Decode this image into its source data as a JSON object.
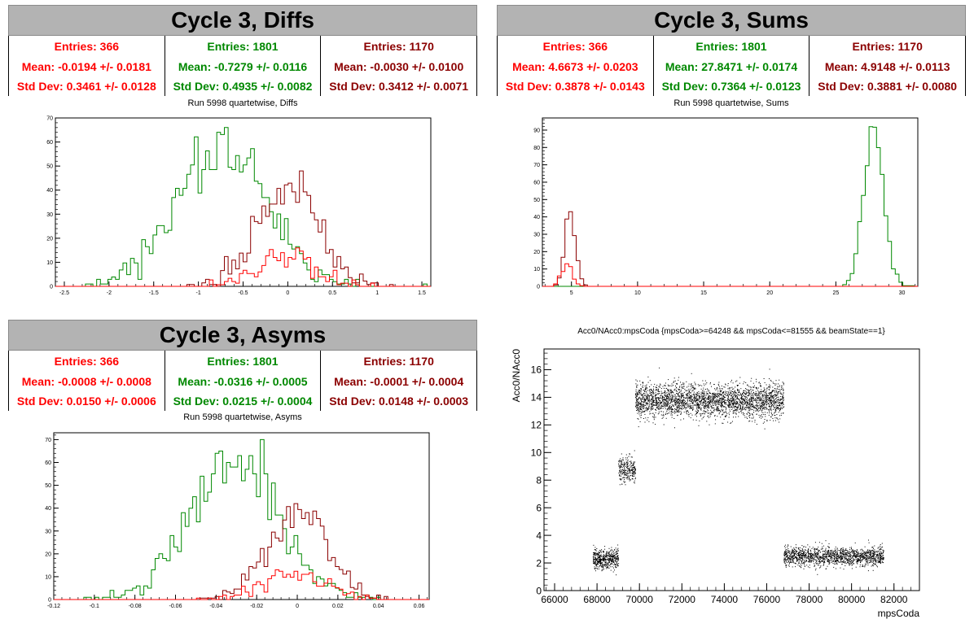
{
  "panels": {
    "diffs": {
      "title": "Cycle 3, Diffs",
      "subtitle": "Run 5998 quartetwise, Diffs",
      "stats": [
        {
          "entries": "Entries: 366",
          "mean": "Mean: -0.0194 +/- 0.0181",
          "std": "Std Dev: 0.3461 +/- 0.0128",
          "color": "#ff0000"
        },
        {
          "entries": "Entries: 1801",
          "mean": "Mean: -0.7279 +/- 0.0116",
          "std": "Std Dev: 0.4935 +/- 0.0082",
          "color": "#008800"
        },
        {
          "entries": "Entries: 1170",
          "mean": "Mean: -0.0030 +/- 0.0100",
          "std": "Std Dev: 0.3412 +/- 0.0071",
          "color": "#8b0000"
        }
      ]
    },
    "sums": {
      "title": "Cycle 3, Sums",
      "subtitle": "Run 5998 quartetwise, Sums",
      "stats": [
        {
          "entries": "Entries: 366",
          "mean": "Mean: 4.6673 +/- 0.0203",
          "std": "Std Dev: 0.3878 +/- 0.0143",
          "color": "#ff0000"
        },
        {
          "entries": "Entries: 1801",
          "mean": "Mean: 27.8471 +/- 0.0174",
          "std": "Std Dev: 0.7364 +/- 0.0123",
          "color": "#008800"
        },
        {
          "entries": "Entries: 1170",
          "mean": "Mean: 4.9148 +/- 0.0113",
          "std": "Std Dev: 0.3881 +/- 0.0080",
          "color": "#8b0000"
        }
      ]
    },
    "asyms": {
      "title": "Cycle 3, Asyms",
      "subtitle": "Run 5998 quartetwise, Asyms",
      "stats": [
        {
          "entries": "Entries: 366",
          "mean": "Mean: -0.0008 +/- 0.0008",
          "std": "Std Dev: 0.0150 +/- 0.0006",
          "color": "#ff0000"
        },
        {
          "entries": "Entries: 1801",
          "mean": "Mean: -0.0316 +/- 0.0005",
          "std": "Std Dev: 0.0215 +/- 0.0004",
          "color": "#008800"
        },
        {
          "entries": "Entries: 1170",
          "mean": "Mean: -0.0001 +/- 0.0004",
          "std": "Std Dev: 0.0148 +/- 0.0003",
          "color": "#8b0000"
        }
      ]
    },
    "scatter": {
      "title": "Acc0/NAcc0:mpsCoda {mpsCoda>=64248 && mpsCoda<=81555 && beamState==1}"
    }
  },
  "chart_data": [
    {
      "id": "diffs",
      "type": "histogram",
      "title": "Run 5998 quartetwise, Diffs",
      "xlim": [
        -2.6,
        1.6
      ],
      "ylim": [
        0,
        70
      ],
      "xticks": [
        -2.5,
        -2,
        -1.5,
        -1,
        -0.5,
        0,
        0.5,
        1,
        1.5
      ],
      "xtick_labels": [
        "-2.5",
        "-2",
        "-1.5",
        "-1",
        "-0.5",
        "0",
        "0.5",
        "1",
        "1.5"
      ],
      "yticks": [
        0,
        10,
        20,
        30,
        40,
        50,
        60,
        70
      ],
      "series": [
        {
          "entries": 1801,
          "mean": -0.7279,
          "std": 0.4935,
          "color": "#008800",
          "peak": 66
        },
        {
          "entries": 1170,
          "mean": -0.003,
          "std": 0.3412,
          "color": "#8b0000",
          "peak": 48
        },
        {
          "entries": 366,
          "mean": -0.0194,
          "std": 0.3461,
          "color": "#ff0000",
          "peak": 16
        }
      ]
    },
    {
      "id": "sums",
      "type": "histogram",
      "title": "Run 5998 quartetwise, Sums",
      "xlim": [
        2.8,
        31.2
      ],
      "ylim": [
        0,
        97
      ],
      "xticks": [
        5,
        10,
        15,
        20,
        25,
        30
      ],
      "xtick_labels": [
        "5",
        "10",
        "15",
        "20",
        "25",
        "30"
      ],
      "yticks": [
        0,
        10,
        20,
        30,
        40,
        50,
        60,
        70,
        80,
        90
      ],
      "series": [
        {
          "entries": 1801,
          "mean": 27.8471,
          "std": 0.7364,
          "color": "#008800",
          "peak": 92
        },
        {
          "entries": 1170,
          "mean": 4.9148,
          "std": 0.3881,
          "color": "#8b0000",
          "peak": 43
        },
        {
          "entries": 366,
          "mean": 4.6673,
          "std": 0.3878,
          "color": "#ff0000",
          "peak": 13
        }
      ]
    },
    {
      "id": "asyms",
      "type": "histogram",
      "title": "Run 5998 quartetwise, Asyms",
      "xlim": [
        -0.12,
        0.065
      ],
      "ylim": [
        0,
        73
      ],
      "xticks": [
        -0.12,
        -0.1,
        -0.08,
        -0.06,
        -0.04,
        -0.02,
        0,
        0.02,
        0.04,
        0.06
      ],
      "xtick_labels": [
        "-0.12",
        "-0.1",
        "-0.08",
        "-0.06",
        "-0.04",
        "-0.02",
        "0",
        "0.02",
        "0.04",
        "0.06"
      ],
      "yticks": [
        0,
        10,
        20,
        30,
        40,
        50,
        60,
        70
      ],
      "series": [
        {
          "entries": 1801,
          "mean": -0.0316,
          "std": 0.0215,
          "color": "#008800",
          "peak": 70
        },
        {
          "entries": 1170,
          "mean": -0.0001,
          "std": 0.0148,
          "color": "#8b0000",
          "peak": 42
        },
        {
          "entries": 366,
          "mean": -0.0008,
          "std": 0.015,
          "color": "#ff0000",
          "peak": 13
        }
      ]
    },
    {
      "id": "scatter",
      "type": "scatter",
      "title": "Acc0/NAcc0:mpsCoda {mpsCoda>=64248 && mpsCoda<=81555 && beamState==1}",
      "xlabel": "mpsCoda",
      "ylabel": "Acc0/NAcc0",
      "xlim": [
        65500,
        83200
      ],
      "ylim": [
        0,
        17.5
      ],
      "xticks": [
        66000,
        68000,
        70000,
        72000,
        74000,
        76000,
        78000,
        80000,
        82000
      ],
      "xtick_labels": [
        "66000",
        "68000",
        "70000",
        "72000",
        "74000",
        "76000",
        "78000",
        "80000",
        "82000"
      ],
      "yticks": [
        0,
        2,
        4,
        6,
        8,
        10,
        12,
        14,
        16
      ],
      "ytick_labels": [
        "0",
        "2",
        "4",
        "6",
        "8",
        "10",
        "12",
        "14",
        "16"
      ],
      "color": "#000000",
      "clusters": [
        {
          "x": [
            67800,
            69000
          ],
          "y_center": 2.3,
          "y_spread": 0.35,
          "n": 500
        },
        {
          "x": [
            69000,
            69800
          ],
          "y_center": 8.8,
          "y_spread": 0.45,
          "n": 260
        },
        {
          "x": [
            69800,
            76800
          ],
          "y_center": 13.8,
          "y_spread": 0.6,
          "n": 2800
        },
        {
          "x": [
            76800,
            81500
          ],
          "y_center": 2.5,
          "y_spread": 0.35,
          "n": 1500
        }
      ]
    }
  ]
}
